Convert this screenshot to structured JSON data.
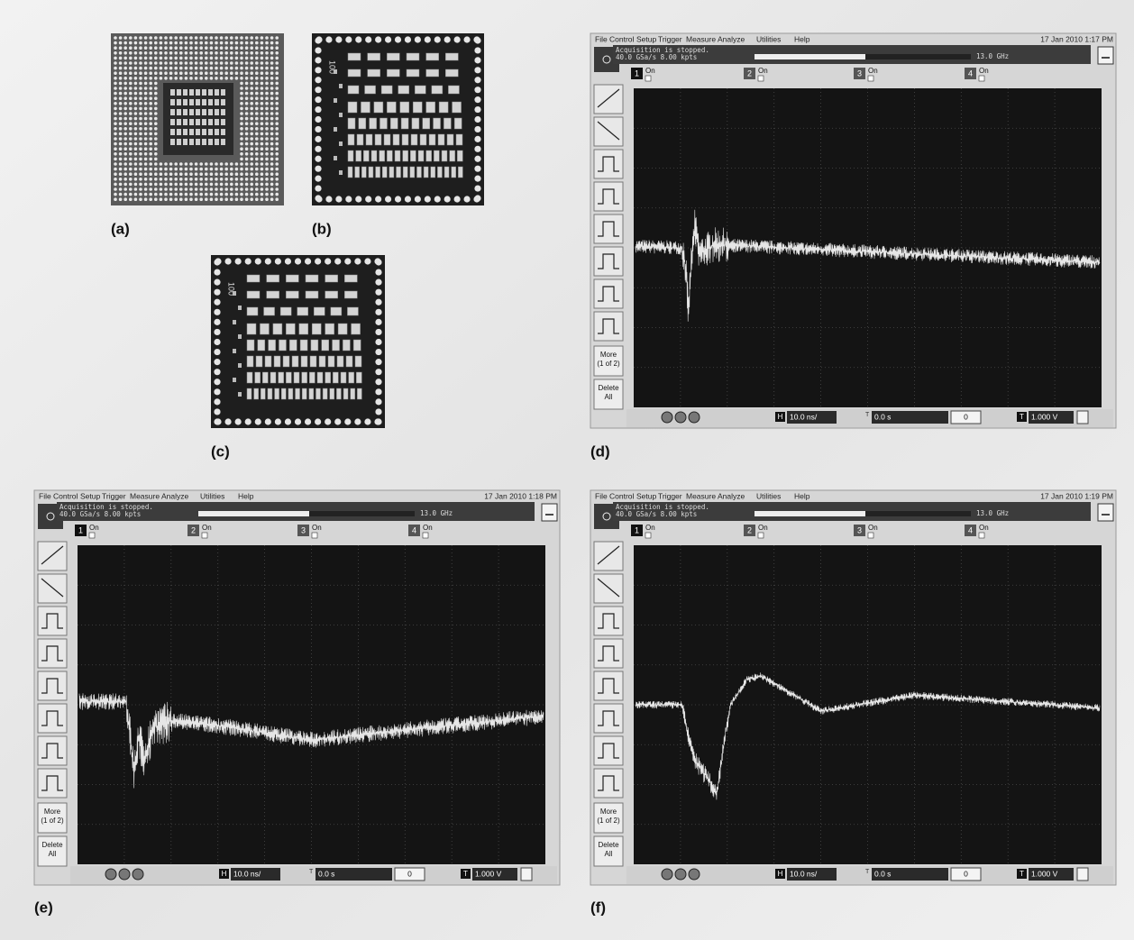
{
  "photos": [
    {
      "label": "(a)"
    },
    {
      "label": "(b)",
      "marking": "100"
    },
    {
      "label": "(c)",
      "marking": "100"
    }
  ],
  "scopes": [
    {
      "label": "(d)",
      "menu": [
        "File",
        "Control",
        "Setup",
        "Trigger",
        "Measure",
        "Analyze",
        "Utilities",
        "Help"
      ],
      "timestamp": "17 Jan 2010 1:17 PM",
      "status": [
        "Acquisition is stopped.",
        "40.0 GSa/s   8.00 kpts"
      ],
      "bandwidth": "13.0 GHz",
      "channels": [
        {
          "number": "1",
          "state": "On"
        },
        {
          "number": "2",
          "state": "On"
        },
        {
          "number": "3",
          "state": "On"
        },
        {
          "number": "4",
          "state": "On"
        }
      ],
      "buttons": [
        {
          "lines": [
            "More",
            "(1 of 2)"
          ]
        },
        {
          "lines": [
            "Delete",
            "All"
          ]
        }
      ],
      "horizontal": "H",
      "timebase": "10.0 ns/",
      "delay": "0.0 s",
      "position": "0",
      "trigger": "T",
      "level": "1.000 V"
    },
    {
      "label": "(e)",
      "menu": [
        "File",
        "Control",
        "Setup",
        "Trigger",
        "Measure",
        "Analyze",
        "Utilities",
        "Help"
      ],
      "timestamp": "17 Jan 2010 1:18 PM",
      "status": [
        "Acquisition is stopped.",
        "40.0 GSa/s   8.00 kpts"
      ],
      "bandwidth": "13.0 GHz",
      "channels": [
        {
          "number": "1",
          "state": "On"
        },
        {
          "number": "2",
          "state": "On"
        },
        {
          "number": "3",
          "state": "On"
        },
        {
          "number": "4",
          "state": "On"
        }
      ],
      "buttons": [
        {
          "lines": [
            "More",
            "(1 of 2)"
          ]
        },
        {
          "lines": [
            "Delete",
            "All"
          ]
        }
      ],
      "horizontal": "H",
      "timebase": "10.0 ns/",
      "delay": "0.0 s",
      "position": "0",
      "trigger": "T",
      "level": "1.000 V"
    },
    {
      "label": "(f)",
      "menu": [
        "File",
        "Control",
        "Setup",
        "Trigger",
        "Measure",
        "Analyze",
        "Utilities",
        "Help"
      ],
      "timestamp": "17 Jan 2010 1:19 PM",
      "status": [
        "Acquisition is stopped.",
        "40.0 GSa/s   8.00 kpts"
      ],
      "bandwidth": "13.0 GHz",
      "channels": [
        {
          "number": "1",
          "state": "On"
        },
        {
          "number": "2",
          "state": "On"
        },
        {
          "number": "3",
          "state": "On"
        },
        {
          "number": "4",
          "state": "On"
        }
      ],
      "buttons": [
        {
          "lines": [
            "More",
            "(1 of 2)"
          ]
        },
        {
          "lines": [
            "Delete",
            "All"
          ]
        }
      ],
      "horizontal": "H",
      "timebase": "10.0 ns/",
      "delay": "0.0 s",
      "position": "0",
      "trigger": "T",
      "level": "1.000 V"
    }
  ]
}
